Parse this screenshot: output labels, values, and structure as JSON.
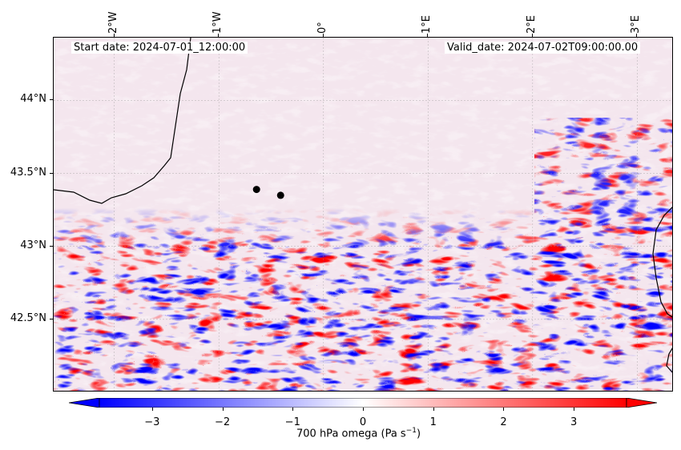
{
  "annotations": {
    "start_date": "Start date: 2024-07-01_12:00:00",
    "valid_date": "Valid_date: 2024-07-02T09:00:00.00"
  },
  "map": {
    "projection": "PlateCarree",
    "extent_lon": [
      -2.58,
      3.35
    ],
    "extent_lat": [
      42.0,
      44.43
    ],
    "gridlines": true,
    "lon_ticks": [
      {
        "value": -2,
        "label": "2°W"
      },
      {
        "value": -1,
        "label": "1°W"
      },
      {
        "value": 0,
        "label": "0°"
      },
      {
        "value": 1,
        "label": "1°E"
      },
      {
        "value": 2,
        "label": "2°E"
      },
      {
        "value": 3,
        "label": "3°E"
      }
    ],
    "lat_ticks": [
      {
        "value": 44.0,
        "label": "44°N"
      },
      {
        "value": 43.5,
        "label": "43.5°N"
      },
      {
        "value": 43.0,
        "label": "43°N"
      },
      {
        "value": 42.5,
        "label": "42.5°N"
      }
    ],
    "markers": [
      {
        "lon": -0.64,
        "lat": 43.39,
        "color": "#000000"
      },
      {
        "lon": -0.41,
        "lat": 43.35,
        "color": "#000000"
      }
    ],
    "field": "700 hPa omega",
    "colormap": "bwr"
  },
  "colorbar": {
    "label_main": "700 hPa omega (Pa s",
    "label_exp": "−1",
    "label_close": ")",
    "range": [
      -3.75,
      3.75
    ],
    "extend": "both",
    "ticks": [
      "−3",
      "−2",
      "−1",
      "0",
      "1",
      "2",
      "3"
    ],
    "tick_values": [
      -3,
      -2,
      -1,
      0,
      1,
      2,
      3
    ],
    "colors": {
      "low": "#0000ff",
      "mid": "#ffffff",
      "high": "#ff0000"
    }
  }
}
